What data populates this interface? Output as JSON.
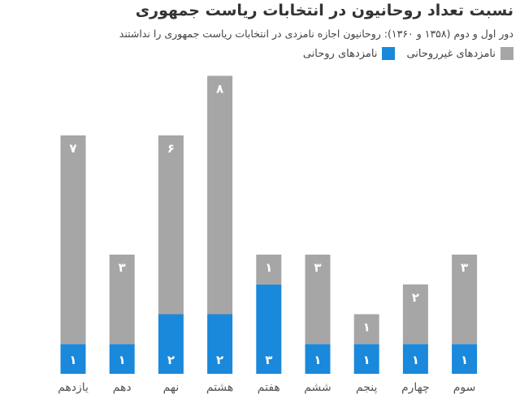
{
  "chart_data": {
    "type": "bar",
    "stacked": true,
    "title": "نسبت تعداد روحانیون در انتخابات ریاست جمهوری",
    "subtitle": "دور اول و دوم (۱۳۵۸ و ۱۳۶۰):  روحانیون اجازه نامزدی در انتخابات ریاست جمهوری را نداشتند",
    "categories": [
      "یازدهم",
      "دهم",
      "نهم",
      "هشتم",
      "هفتم",
      "ششم",
      "پنجم",
      "چهارم",
      "سوم"
    ],
    "series": [
      {
        "name": "نامزدهای روحانی",
        "color": "#1a88db",
        "values": [
          1,
          1,
          2,
          2,
          3,
          1,
          1,
          1,
          1
        ],
        "labels": [
          "۱",
          "۱",
          "۲",
          "۲",
          "۳",
          "۱",
          "۱",
          "۱",
          "۱"
        ]
      },
      {
        "name": "نامزدهای غیرروحانی",
        "color": "#a6a6a6",
        "values": [
          7,
          3,
          6,
          8,
          1,
          3,
          1,
          2,
          3
        ],
        "labels": [
          "۷",
          "۳",
          "۶",
          "۸",
          "۱",
          "۳",
          "۱",
          "۲",
          "۳"
        ]
      }
    ],
    "legend_position": "top-right",
    "grid": false,
    "ylim": [
      0,
      10
    ]
  }
}
